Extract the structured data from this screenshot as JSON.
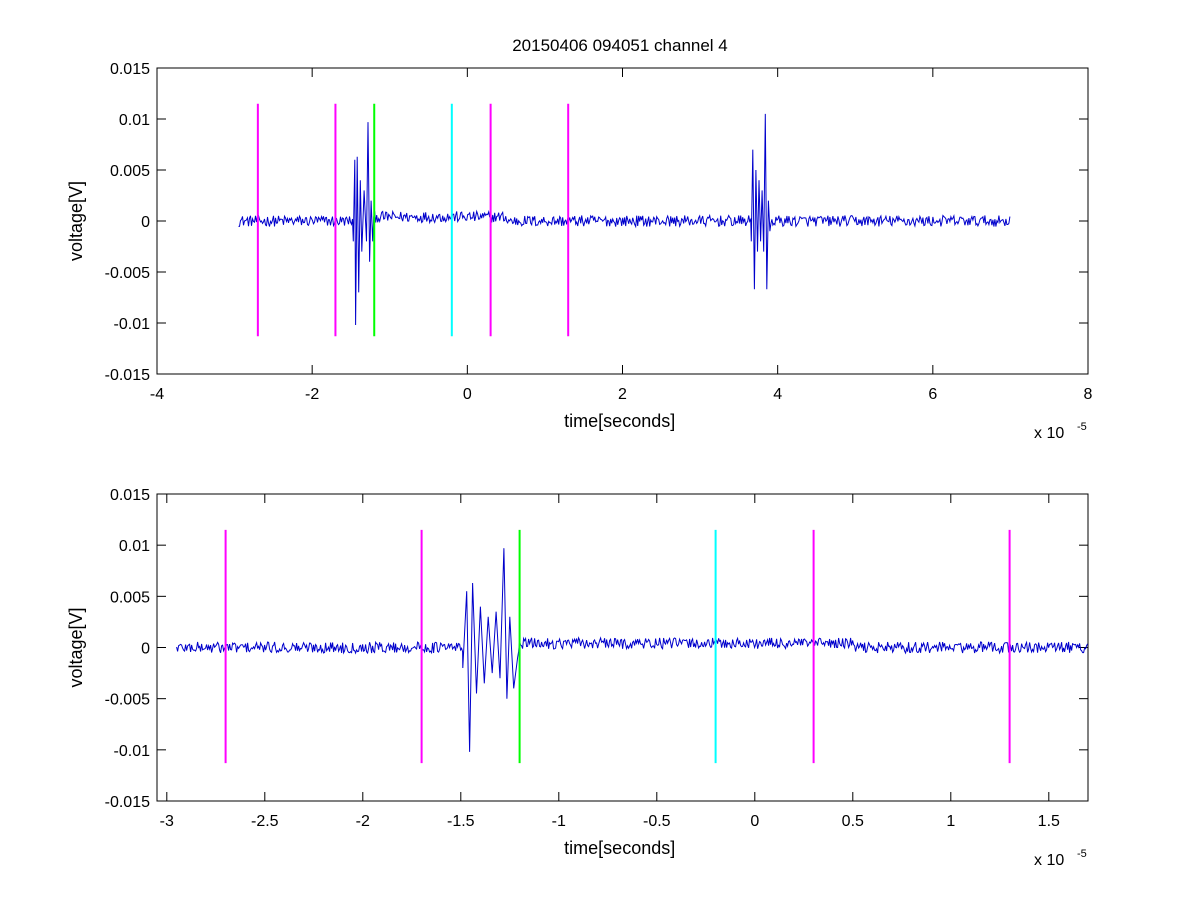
{
  "figure": {
    "title": "20150406 094051 channel 4"
  },
  "chart_data": [
    {
      "type": "line",
      "title": "20150406 094051 channel 4",
      "xlabel": "time[seconds]",
      "ylabel": "voltage[V]",
      "x_multiplier_label": "x 10",
      "x_multiplier_exponent": "-5",
      "xlim": [
        -4,
        8
      ],
      "ylim": [
        -0.015,
        0.015
      ],
      "xticks": [
        -4,
        -2,
        0,
        2,
        4,
        6,
        8
      ],
      "xtick_labels": [
        "-4",
        "-2",
        "0",
        "2",
        "4",
        "6",
        "8"
      ],
      "yticks": [
        -0.015,
        -0.01,
        -0.005,
        0,
        0.005,
        0.01,
        0.015
      ],
      "ytick_labels": [
        "-0.015",
        "-0.01",
        "-0.005",
        "0",
        "0.005",
        "0.01",
        "0.015"
      ],
      "grid": false,
      "series_color": "#0000cc",
      "signal_range": [
        -2.95,
        7.0
      ],
      "signal_baseline": 0.0,
      "bursts": [
        {
          "x": [
            -1.47,
            -1.45,
            -1.44,
            -1.42,
            -1.4,
            -1.38,
            -1.36,
            -1.33,
            -1.3,
            -1.28,
            -1.26,
            -1.24,
            -1.22
          ],
          "y": [
            -0.002,
            0.006,
            -0.0102,
            0.0063,
            -0.007,
            0.004,
            -0.003,
            0.003,
            -0.002,
            0.0097,
            -0.004,
            0.002,
            -0.002
          ]
        },
        {
          "x": [
            3.66,
            3.68,
            3.7,
            3.72,
            3.74,
            3.76,
            3.78,
            3.8,
            3.82,
            3.84,
            3.86,
            3.88,
            3.9
          ],
          "y": [
            -0.002,
            0.007,
            -0.0067,
            0.005,
            -0.003,
            0.004,
            -0.002,
            0.003,
            -0.003,
            0.0105,
            -0.0067,
            0.002,
            -0.001
          ]
        }
      ],
      "markers": [
        {
          "x": -2.7,
          "color": "#ff00ff",
          "ymin": -0.0113,
          "ymax": 0.0115
        },
        {
          "x": -1.7,
          "color": "#ff00ff",
          "ymin": -0.0113,
          "ymax": 0.0115
        },
        {
          "x": -1.2,
          "color": "#00ff00",
          "ymin": -0.0113,
          "ymax": 0.0115
        },
        {
          "x": -0.2,
          "color": "#00ffff",
          "ymin": -0.0113,
          "ymax": 0.0115
        },
        {
          "x": 0.3,
          "color": "#ff00ff",
          "ymin": -0.0113,
          "ymax": 0.0115
        },
        {
          "x": 1.3,
          "color": "#ff00ff",
          "ymin": -0.0113,
          "ymax": 0.0115
        }
      ]
    },
    {
      "type": "line",
      "title": "",
      "xlabel": "time[seconds]",
      "ylabel": "voltage[V]",
      "x_multiplier_label": "x 10",
      "x_multiplier_exponent": "-5",
      "xlim": [
        -3.05,
        1.7
      ],
      "ylim": [
        -0.015,
        0.015
      ],
      "xticks": [
        -3,
        -2.5,
        -2,
        -1.5,
        -1,
        -0.5,
        0,
        0.5,
        1,
        1.5
      ],
      "xtick_labels": [
        "-3",
        "-2.5",
        "-2",
        "-1.5",
        "-1",
        "-0.5",
        "0",
        "0.5",
        "1",
        "1.5"
      ],
      "yticks": [
        -0.015,
        -0.01,
        -0.005,
        0,
        0.005,
        0.01,
        0.015
      ],
      "ytick_labels": [
        "-0.015",
        "-0.01",
        "-0.005",
        "0",
        "0.005",
        "0.01",
        "0.015"
      ],
      "grid": false,
      "series_color": "#0000cc",
      "signal_range": [
        -2.95,
        1.7
      ],
      "signal_baseline": 0.0,
      "bursts": [
        {
          "x": [
            -1.49,
            -1.47,
            -1.455,
            -1.44,
            -1.42,
            -1.4,
            -1.38,
            -1.36,
            -1.34,
            -1.32,
            -1.3,
            -1.28,
            -1.265,
            -1.25,
            -1.23,
            -1.21
          ],
          "y": [
            -0.002,
            0.0055,
            -0.0102,
            0.0063,
            -0.0045,
            0.004,
            -0.0035,
            0.003,
            -0.0025,
            0.0035,
            -0.003,
            0.0097,
            -0.005,
            0.003,
            -0.004,
            -0.001
          ]
        }
      ],
      "markers": [
        {
          "x": -2.7,
          "color": "#ff00ff",
          "ymin": -0.0113,
          "ymax": 0.0115
        },
        {
          "x": -1.7,
          "color": "#ff00ff",
          "ymin": -0.0113,
          "ymax": 0.0115
        },
        {
          "x": -1.2,
          "color": "#00ff00",
          "ymin": -0.0113,
          "ymax": 0.0115
        },
        {
          "x": -0.2,
          "color": "#00ffff",
          "ymin": -0.0113,
          "ymax": 0.0115
        },
        {
          "x": 0.3,
          "color": "#ff00ff",
          "ymin": -0.0113,
          "ymax": 0.0115
        },
        {
          "x": 1.3,
          "color": "#ff00ff",
          "ymin": -0.0113,
          "ymax": 0.0115
        }
      ]
    }
  ]
}
